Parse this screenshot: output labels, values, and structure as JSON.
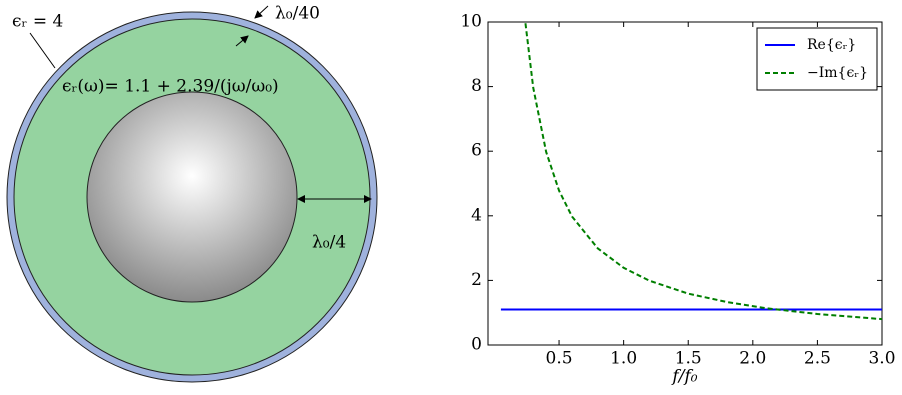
{
  "diagram": {
    "outer_label": "ϵᵣ = 4",
    "thin_layer_label": "λ₀/40",
    "shell_label": "ϵᵣ(ω)= 1.1 + 2.39/(jω/ω₀)",
    "shell_thickness_label": "λ₀/4"
  },
  "chart_data": {
    "type": "line",
    "x_label": "f/f₀",
    "x": [
      0.05,
      0.24,
      0.3,
      0.4,
      0.5,
      0.6,
      0.8,
      1.0,
      1.2,
      1.5,
      1.8,
      2.1,
      2.5,
      3.0
    ],
    "series": [
      {
        "name": "Re{ϵᵣ}",
        "color": "#0000ff",
        "dash": "solid",
        "values": [
          1.1,
          1.1,
          1.1,
          1.1,
          1.1,
          1.1,
          1.1,
          1.1,
          1.1,
          1.1,
          1.1,
          1.1,
          1.1,
          1.1
        ]
      },
      {
        "name": "−Im{ϵᵣ}",
        "color": "#007f00",
        "dash": "dashed",
        "values": [
          null,
          9.96,
          7.97,
          5.98,
          4.78,
          3.98,
          2.99,
          2.39,
          1.99,
          1.59,
          1.33,
          1.14,
          0.96,
          0.8
        ]
      }
    ],
    "xlim": [
      -0.05,
      3.0
    ],
    "xticks": [
      0.5,
      {
        "value": 1,
        "label": "1.0"
      },
      1.5,
      {
        "value": 2,
        "label": "2.0"
      },
      2.5,
      {
        "value": 3,
        "label": "3.0"
      }
    ],
    "ylim": [
      0,
      10
    ],
    "yticks": [
      0,
      2,
      4,
      6,
      8,
      10
    ],
    "legend": "upper right"
  }
}
